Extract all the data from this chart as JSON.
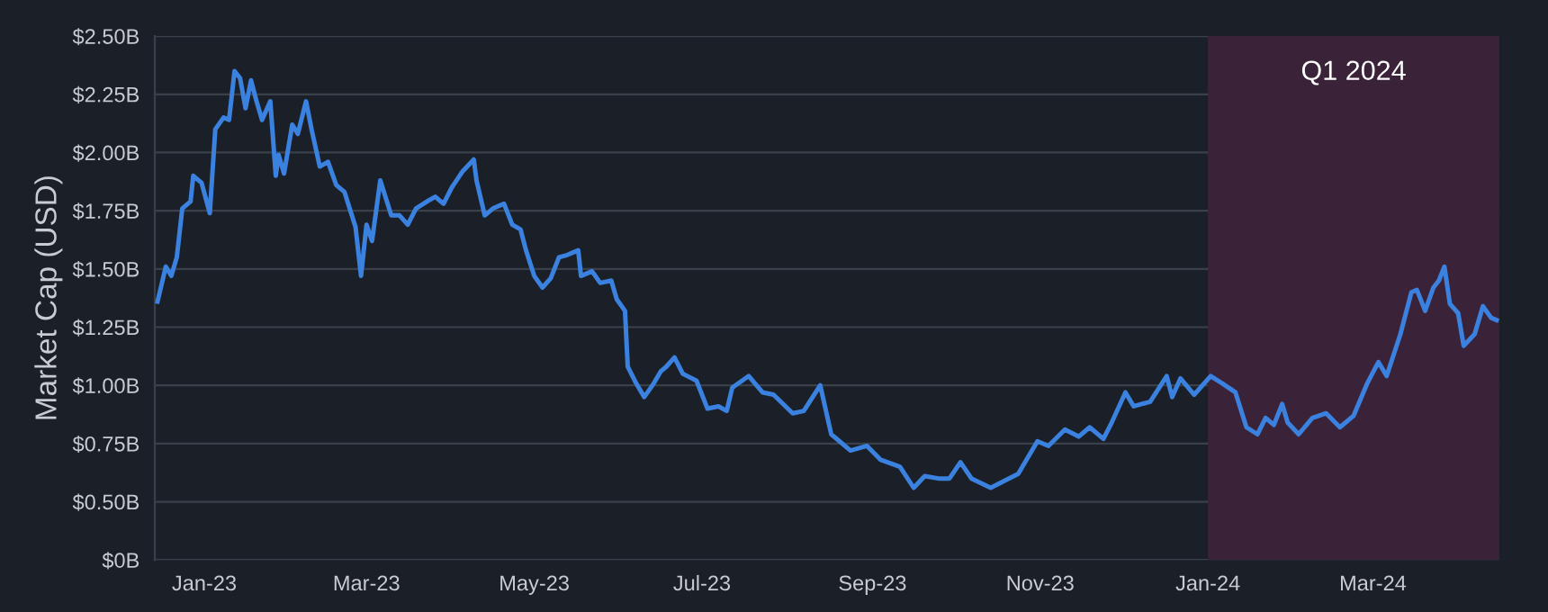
{
  "chart_data": {
    "type": "line",
    "ylabel": "Market Cap (USD)",
    "xlim": [
      "2022-12-14",
      "2024-04-16"
    ],
    "xticks": [
      {
        "value": "2023-01-01",
        "label": "Jan-23"
      },
      {
        "value": "2023-03-01",
        "label": "Mar-23"
      },
      {
        "value": "2023-05-01",
        "label": "May-23"
      },
      {
        "value": "2023-07-01",
        "label": "Jul-23"
      },
      {
        "value": "2023-09-01",
        "label": "Sep-23"
      },
      {
        "value": "2023-11-01",
        "label": "Nov-23"
      },
      {
        "value": "2024-01-01",
        "label": "Jan-24"
      },
      {
        "value": "2024-03-01",
        "label": "Mar-24"
      }
    ],
    "ylim": [
      0.25,
      2.5
    ],
    "yticks": [
      {
        "value": 0.25,
        "label": "$0B"
      },
      {
        "value": 0.5,
        "label": "$0.50B"
      },
      {
        "value": 0.75,
        "label": "$0.75B"
      },
      {
        "value": 1.0,
        "label": "$1.00B"
      },
      {
        "value": 1.25,
        "label": "$1.25B"
      },
      {
        "value": 1.5,
        "label": "$1.50B"
      },
      {
        "value": 1.75,
        "label": "$1.75B"
      },
      {
        "value": 2.0,
        "label": "$2.00B"
      },
      {
        "value": 2.25,
        "label": "$2.25B"
      },
      {
        "value": 2.5,
        "label": "$2.50B"
      }
    ],
    "grid": "y",
    "marker": "none",
    "line_style": "solid",
    "bands": [
      {
        "axis": "x",
        "from": "2024-01-01",
        "to": "2024-04-16",
        "label": "Q1 2024",
        "color": "#3a2338"
      }
    ],
    "series": [
      {
        "color": "#3b82e0",
        "x": [
          "2022-12-15",
          "2022-12-18",
          "2022-12-20",
          "2022-12-22",
          "2022-12-24",
          "2022-12-27",
          "2022-12-28",
          "2022-12-31",
          "2023-01-03",
          "2023-01-05",
          "2023-01-08",
          "2023-01-10",
          "2023-01-12",
          "2023-01-14",
          "2023-01-16",
          "2023-01-18",
          "2023-01-20",
          "2023-01-22",
          "2023-01-25",
          "2023-01-27",
          "2023-01-28",
          "2023-01-30",
          "2023-02-02",
          "2023-02-04",
          "2023-02-07",
          "2023-02-09",
          "2023-02-12",
          "2023-02-15",
          "2023-02-18",
          "2023-02-21",
          "2023-02-25",
          "2023-02-27",
          "2023-03-01",
          "2023-03-03",
          "2023-03-06",
          "2023-03-10",
          "2023-03-13",
          "2023-03-16",
          "2023-03-19",
          "2023-03-23",
          "2023-03-26",
          "2023-03-29",
          "2023-04-01",
          "2023-04-05",
          "2023-04-09",
          "2023-04-10",
          "2023-04-13",
          "2023-04-16",
          "2023-04-20",
          "2023-04-23",
          "2023-04-26",
          "2023-04-28",
          "2023-05-01",
          "2023-05-04",
          "2023-05-07",
          "2023-05-10",
          "2023-05-13",
          "2023-05-17",
          "2023-05-18",
          "2023-05-22",
          "2023-05-25",
          "2023-05-29",
          "2023-05-31",
          "2023-06-03",
          "2023-06-04",
          "2023-06-07",
          "2023-06-10",
          "2023-06-13",
          "2023-06-16",
          "2023-06-18",
          "2023-06-21",
          "2023-06-24",
          "2023-06-29",
          "2023-07-03",
          "2023-07-07",
          "2023-07-10",
          "2023-07-12",
          "2023-07-18",
          "2023-07-23",
          "2023-07-27",
          "2023-08-03",
          "2023-08-07",
          "2023-08-13",
          "2023-08-17",
          "2023-08-24",
          "2023-08-30",
          "2023-09-04",
          "2023-09-11",
          "2023-09-16",
          "2023-09-20",
          "2023-09-25",
          "2023-09-29",
          "2023-10-03",
          "2023-10-07",
          "2023-10-14",
          "2023-10-19",
          "2023-10-24",
          "2023-10-31",
          "2023-11-04",
          "2023-11-10",
          "2023-11-15",
          "2023-11-19",
          "2023-11-24",
          "2023-11-27",
          "2023-12-02",
          "2023-12-05",
          "2023-12-11",
          "2023-12-17",
          "2023-12-19",
          "2023-12-22",
          "2023-12-27",
          "2024-01-02",
          "2024-01-06",
          "2024-01-11",
          "2024-01-15",
          "2024-01-19",
          "2024-01-22",
          "2024-01-25",
          "2024-01-28",
          "2024-01-30",
          "2024-02-03",
          "2024-02-08",
          "2024-02-13",
          "2024-02-18",
          "2024-02-23",
          "2024-02-28",
          "2024-03-03",
          "2024-03-06",
          "2024-03-11",
          "2024-03-15",
          "2024-03-17",
          "2024-03-20",
          "2024-03-23",
          "2024-03-25",
          "2024-03-27",
          "2024-03-29",
          "2024-04-01",
          "2024-04-03",
          "2024-04-07",
          "2024-04-10",
          "2024-04-13",
          "2024-04-15"
        ],
        "values": [
          1.36,
          1.51,
          1.47,
          1.55,
          1.76,
          1.79,
          1.9,
          1.87,
          1.74,
          2.1,
          2.15,
          2.14,
          2.35,
          2.32,
          2.19,
          2.31,
          2.22,
          2.14,
          2.22,
          1.9,
          1.99,
          1.91,
          2.12,
          2.08,
          2.22,
          2.1,
          1.94,
          1.96,
          1.86,
          1.83,
          1.68,
          1.47,
          1.69,
          1.62,
          1.88,
          1.73,
          1.73,
          1.69,
          1.76,
          1.79,
          1.81,
          1.78,
          1.85,
          1.92,
          1.97,
          1.88,
          1.73,
          1.76,
          1.78,
          1.69,
          1.67,
          1.58,
          1.47,
          1.42,
          1.46,
          1.55,
          1.56,
          1.58,
          1.47,
          1.49,
          1.44,
          1.45,
          1.37,
          1.32,
          1.08,
          1.01,
          0.95,
          1.0,
          1.06,
          1.08,
          1.12,
          1.05,
          1.02,
          0.9,
          0.91,
          0.89,
          0.99,
          1.04,
          0.97,
          0.96,
          0.88,
          0.89,
          1.0,
          0.79,
          0.72,
          0.74,
          0.68,
          0.65,
          0.56,
          0.61,
          0.6,
          0.6,
          0.67,
          0.6,
          0.56,
          0.59,
          0.62,
          0.76,
          0.74,
          0.81,
          0.78,
          0.82,
          0.77,
          0.84,
          0.97,
          0.91,
          0.93,
          1.04,
          0.95,
          1.03,
          0.96,
          1.04,
          1.01,
          0.97,
          0.82,
          0.79,
          0.86,
          0.83,
          0.92,
          0.84,
          0.79,
          0.86,
          0.88,
          0.82,
          0.87,
          1.01,
          1.1,
          1.04,
          1.22,
          1.4,
          1.41,
          1.32,
          1.42,
          1.45,
          1.51,
          1.35,
          1.31,
          1.17,
          1.22,
          1.34,
          1.29,
          1.28
        ]
      }
    ]
  }
}
